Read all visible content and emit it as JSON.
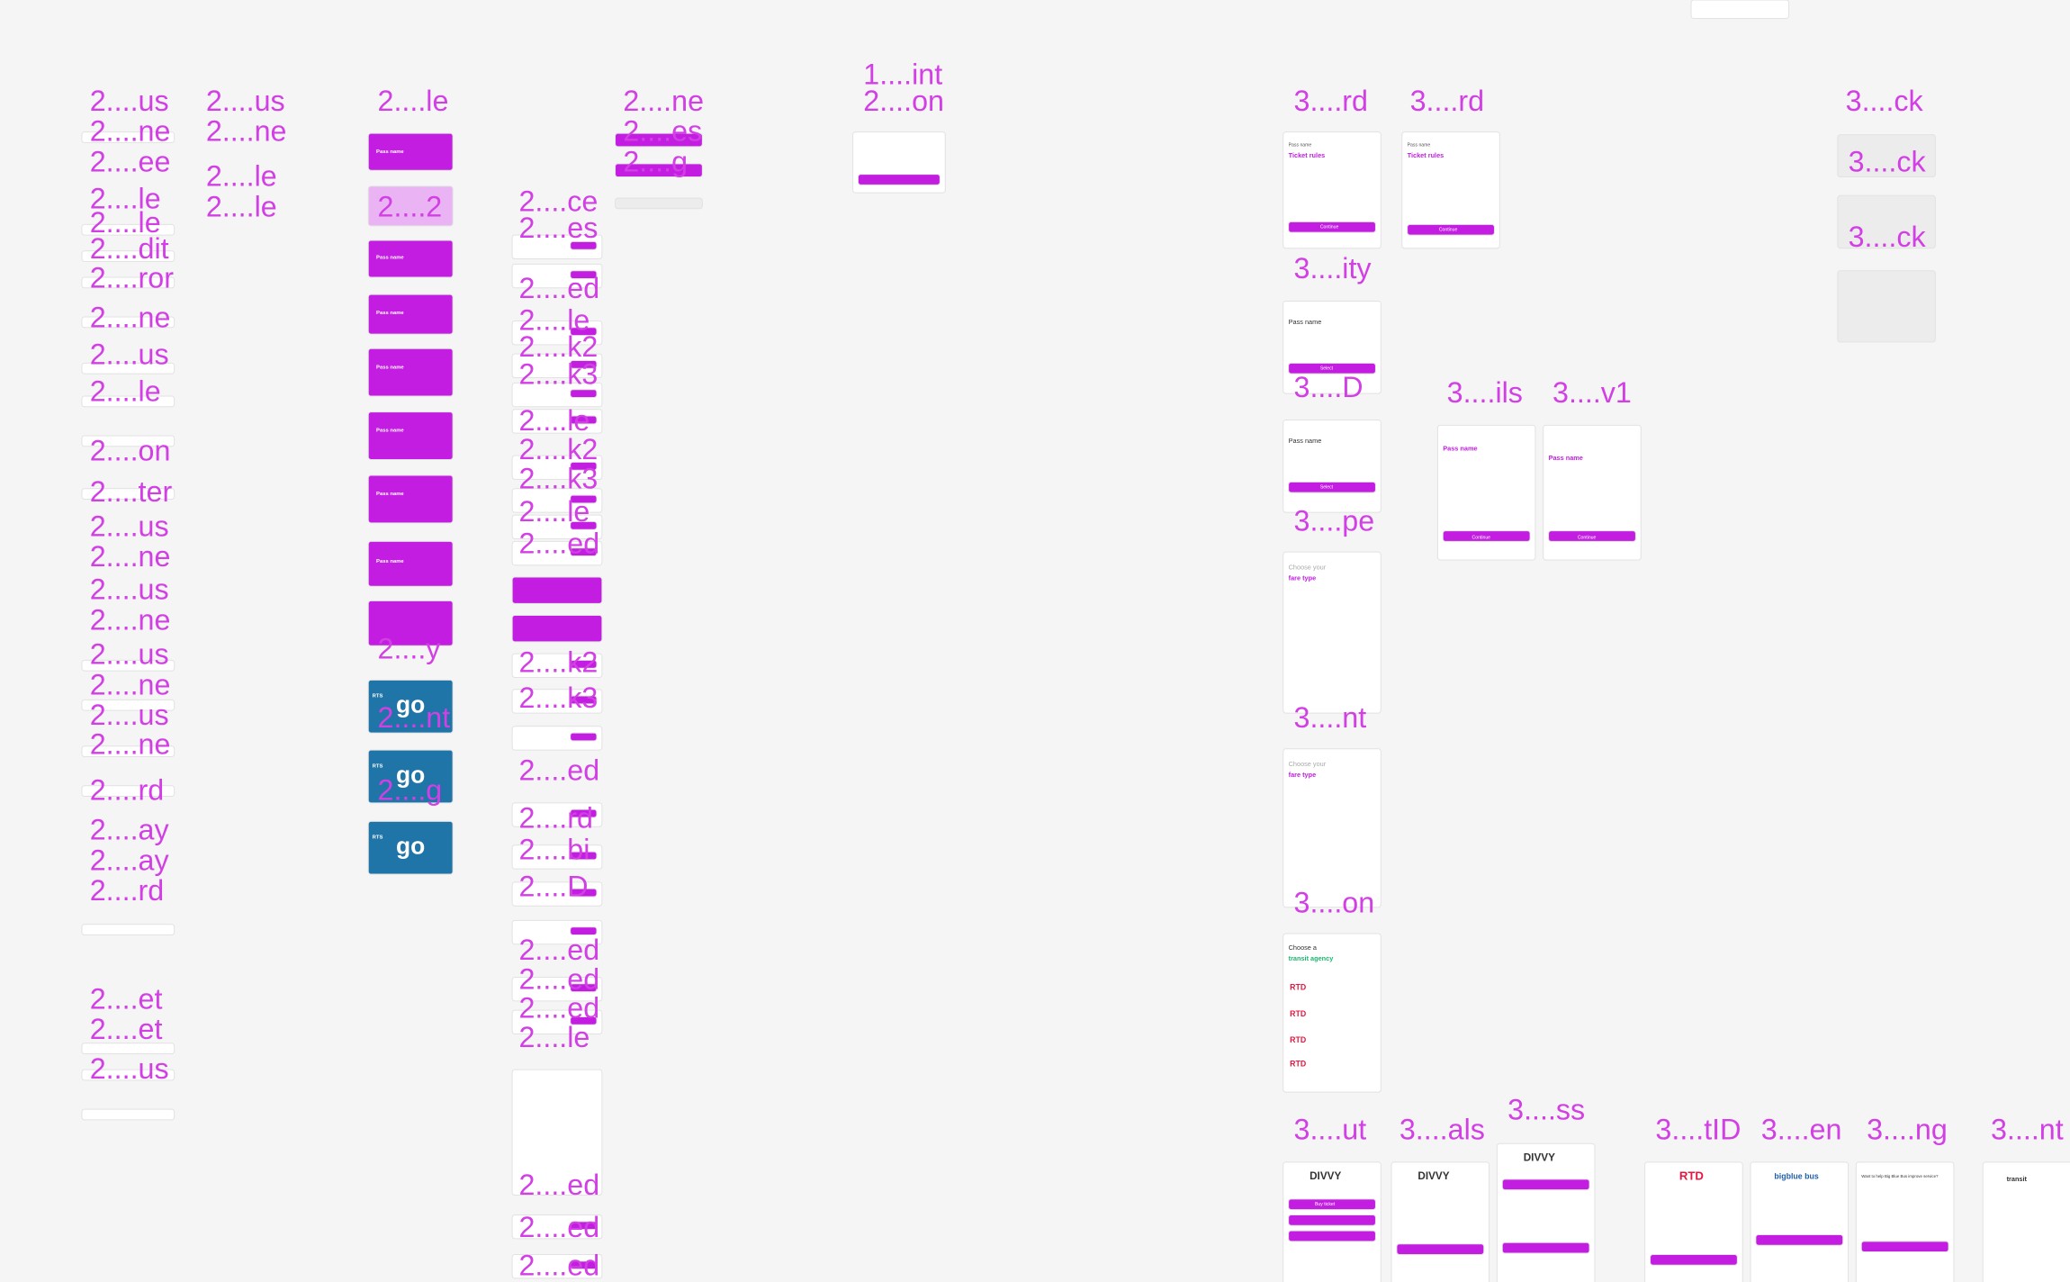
{
  "canvas_labels": [
    "2....us",
    "2....ne",
    "2....ee",
    "2....le",
    "2....le",
    "2....dit",
    "2....ror",
    "2....ne",
    "2....us",
    "2....le",
    "2....on",
    "2....ter",
    "2....us",
    "2....ne",
    "2....us",
    "2....ne",
    "2....us",
    "2....ne",
    "2....us",
    "2....ne",
    "2....rd",
    "2....ay",
    "2....ay",
    "2....rd",
    "2....et",
    "2....et",
    "2....us",
    "2....us",
    "2....ne",
    "2....le",
    "2....le",
    "2....le",
    "2....2",
    "2....y",
    "2....nt",
    "2....g",
    "2....ne",
    "2....es",
    "2....g",
    "2....ce",
    "2....es",
    "2....ed",
    "2....le",
    "2....k2",
    "2....k3",
    "2....le",
    "2....k2",
    "2....k3",
    "2....le",
    "2....ed",
    "2....k2",
    "2....k3",
    "2....ed",
    "2....rd",
    "2....bi",
    "2....D",
    "2....ed",
    "2....ed",
    "2....ed",
    "2....le",
    "2....ed",
    "2....ed",
    "2....ed",
    "1....int",
    "2....on",
    "3....rd",
    "3....rd",
    "3....ity",
    "3....D",
    "3....pe",
    "3....nt",
    "3....on",
    "3....ils",
    "3....v1",
    "3....ck",
    "3....ck",
    "3....ck",
    "3....ut",
    "3....als",
    "3....ss",
    "3....tID",
    "3....en",
    "3....ng",
    "3....nt"
  ],
  "screen_texts": {
    "pass_name": "Pass name",
    "ticket_rules": "Ticket rules",
    "continue": "Continue",
    "select": "Select",
    "choose_your": "Choose your",
    "fare_type": "fare type",
    "choose_a": "Choose a",
    "transit_agency": "transit agency",
    "divvy": "DIVVY",
    "rtd": "RTD",
    "big_blue_bus": "bigblue bus",
    "transit": "transit",
    "go": "go",
    "rts": "RTS",
    "buy_ticket": "Buy ticket",
    "survey": "Want to help Big Blue Bus improve service?"
  }
}
